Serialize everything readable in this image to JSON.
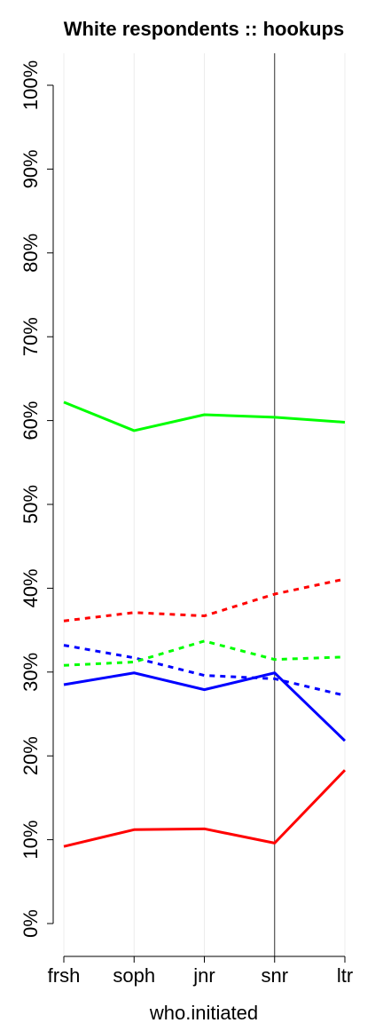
{
  "chart_data": {
    "type": "line",
    "title": "White respondents :: hookups",
    "xlabel": "who.initiated",
    "ylabel": "",
    "categories": [
      "frsh",
      "soph",
      "jnr",
      "snr",
      "ltr"
    ],
    "ylim": [
      0,
      100
    ],
    "yticks": [
      "0%",
      "10%",
      "20%",
      "30%",
      "40%",
      "50%",
      "60%",
      "70%",
      "80%",
      "90%",
      "100%"
    ],
    "grid": "vertical",
    "reference_line_at": "snr",
    "series": [
      {
        "color": "#00ff00",
        "style": "solid",
        "values": [
          62.2,
          58.8,
          60.7,
          60.4,
          59.8
        ]
      },
      {
        "color": "#ff0000",
        "style": "dashed",
        "values": [
          36.1,
          37.1,
          36.7,
          39.3,
          41.1
        ]
      },
      {
        "color": "#0000ff",
        "style": "dashed",
        "values": [
          33.2,
          31.7,
          29.6,
          29.2,
          27.2
        ]
      },
      {
        "color": "#00ff00",
        "style": "dashed",
        "values": [
          30.8,
          31.2,
          33.7,
          31.5,
          31.8
        ]
      },
      {
        "color": "#0000ff",
        "style": "solid",
        "values": [
          28.5,
          29.9,
          27.9,
          29.9,
          21.8
        ]
      },
      {
        "color": "#ff0000",
        "style": "solid",
        "values": [
          9.2,
          11.2,
          11.3,
          9.6,
          18.3
        ]
      }
    ]
  }
}
